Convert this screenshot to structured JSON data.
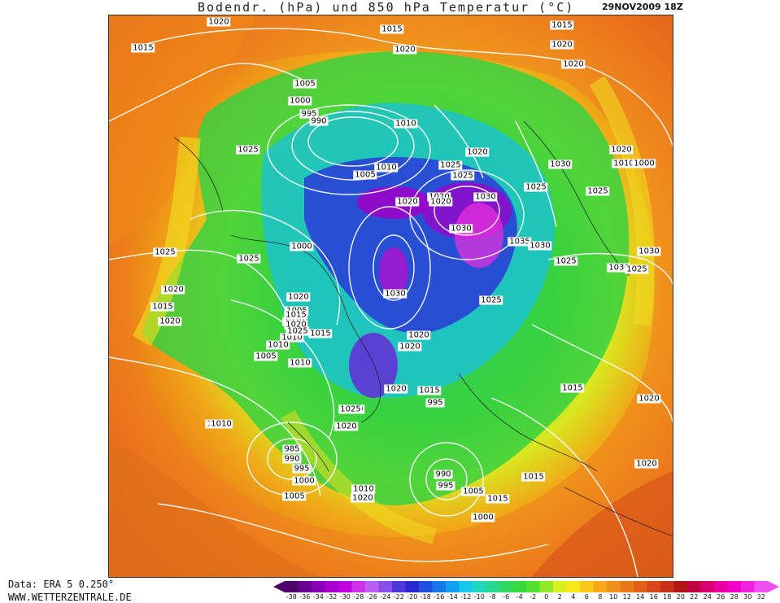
{
  "header": {
    "title": "Bodendr. (hPa) und 850 hPa Temperatur (°C)",
    "date": "29NOV2009 18Z"
  },
  "footer": {
    "data_source": "Data: ERA 5 0.250°",
    "website": "WWW.WETTERZENTRALE.DE"
  },
  "colors": {
    "very_cold": "#5a0070",
    "cold": "#2a2ad8",
    "cool": "#18c8e8",
    "mild": "#30d038",
    "warm": "#f0e020",
    "hot": "#f07810",
    "very_hot": "#c83018"
  },
  "legend": {
    "ticks": [
      "-38",
      "-36",
      "-34",
      "-32",
      "-30",
      "-28",
      "-26",
      "-24",
      "-22",
      "-20",
      "-18",
      "-16",
      "-14",
      "-12",
      "-10",
      "-8",
      "-6",
      "-4",
      "-2",
      "0",
      "2",
      "4",
      "6",
      "8",
      "10",
      "12",
      "14",
      "16",
      "18",
      "20",
      "22",
      "24",
      "26",
      "28",
      "30",
      "32"
    ],
    "colors": [
      "#50006a",
      "#6a0090",
      "#8a00b8",
      "#a800d0",
      "#c000e0",
      "#d030e8",
      "#b860f0",
      "#8850e8",
      "#5038d8",
      "#2c28d0",
      "#2050e0",
      "#1878e8",
      "#10a0f0",
      "#18c8e8",
      "#20d8c0",
      "#28d890",
      "#30d860",
      "#38d840",
      "#50e030",
      "#90e828",
      "#d8f020",
      "#f8e818",
      "#f8c818",
      "#f8a818",
      "#f09018",
      "#e87818",
      "#e06018",
      "#d84818",
      "#c83018",
      "#b01818",
      "#c00040",
      "#d80070",
      "#e800a0",
      "#f000c8",
      "#f020e0",
      "#f050f0"
    ]
  },
  "isobar_labels": [
    "1020",
    "1015",
    "1015",
    "1015",
    "1020",
    "1020",
    "1020",
    "1005",
    "1000",
    "995",
    "990",
    "1010",
    "1025",
    "1020",
    "1025",
    "1020",
    "1010",
    "1000",
    "1010",
    "1005",
    "1025",
    "1030",
    "1030",
    "1020",
    "1025",
    "1020",
    "1020",
    "1025",
    "1030",
    "1035",
    "1030",
    "1025",
    "1000",
    "1030",
    "1030",
    "1025",
    "1025",
    "1025",
    "1020",
    "1015",
    "1020",
    "1020",
    "1005",
    "1010",
    "1015",
    "1020",
    "1010",
    "1015",
    "1025",
    "1030",
    "1020",
    "1020",
    "1025",
    "1010",
    "1005",
    "1010",
    "1015",
    "1010",
    "995",
    "1025",
    "1020",
    "985",
    "990",
    "995",
    "1000",
    "1005",
    "1010",
    "1020",
    "1010",
    "1020",
    "1015",
    "990",
    "995",
    "1005",
    "1000",
    "1015",
    "1015",
    "1015",
    "1020",
    "1020"
  ]
}
